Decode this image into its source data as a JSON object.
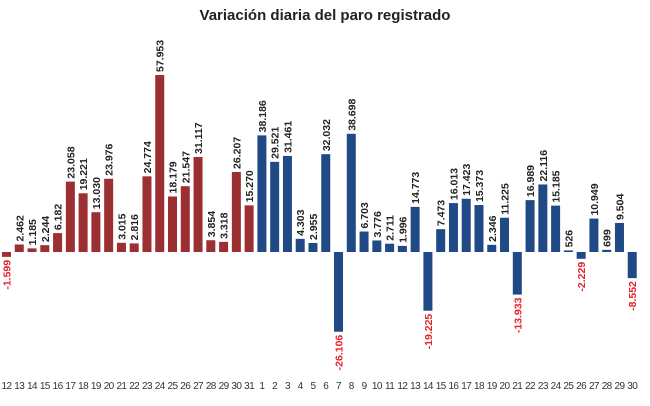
{
  "chart_data": {
    "type": "bar",
    "title": "Variación diaria del paro registrado",
    "xlabel": "",
    "ylabel": "",
    "grid": false,
    "legend": "none",
    "categories": [
      "12",
      "13",
      "14",
      "15",
      "16",
      "17",
      "18",
      "19",
      "20",
      "21",
      "22",
      "23",
      "24",
      "25",
      "26",
      "27",
      "28",
      "29",
      "30",
      "31",
      "1",
      "2",
      "3",
      "4",
      "5",
      "6",
      "7",
      "8",
      "9",
      "10",
      "11",
      "12",
      "13",
      "14",
      "15",
      "16",
      "17",
      "18",
      "19",
      "20",
      "21",
      "22",
      "23",
      "24",
      "25",
      "26",
      "27",
      "28",
      "29",
      "30"
    ],
    "values": [
      -1599,
      2462,
      1185,
      2244,
      6182,
      23058,
      19221,
      13030,
      23976,
      3015,
      2816,
      24774,
      57953,
      18179,
      21547,
      31117,
      3854,
      3318,
      26207,
      15270,
      38186,
      29521,
      31461,
      4303,
      2955,
      32032,
      -26106,
      38698,
      6703,
      3776,
      2711,
      1996,
      14773,
      -19225,
      7473,
      16013,
      17423,
      15373,
      2346,
      11225,
      -13933,
      16989,
      22116,
      15185,
      526,
      -2229,
      10949,
      699,
      9504,
      -8552
    ],
    "data_labels": [
      "-1.599",
      "2.462",
      "1.185",
      "2.244",
      "6.182",
      "23.058",
      "19.221",
      "13.030",
      "23.976",
      "3.015",
      "2.816",
      "24.774",
      "57.953",
      "18.179",
      "21.547",
      "31.117",
      "3.854",
      "3.318",
      "26.207",
      "15.270",
      "38.186",
      "29.521",
      "31.461",
      "4.303",
      "2.955",
      "32.032",
      "-26.106",
      "38.698",
      "6.703",
      "3.776",
      "2.711",
      "1.996",
      "14.773",
      "-19.225",
      "7.473",
      "16.013",
      "17.423",
      "15.373",
      "2.346",
      "11.225",
      "-13.933",
      "16.989",
      "22.116",
      "15.185",
      "526",
      "-2.229",
      "10.949",
      "699",
      "9.504",
      "-8.552"
    ],
    "groups": [
      0,
      0,
      0,
      0,
      0,
      0,
      0,
      0,
      0,
      0,
      0,
      0,
      0,
      0,
      0,
      0,
      0,
      0,
      0,
      0,
      1,
      1,
      1,
      1,
      1,
      1,
      1,
      1,
      1,
      1,
      1,
      1,
      1,
      1,
      1,
      1,
      1,
      1,
      1,
      1,
      1,
      1,
      1,
      1,
      1,
      1,
      1,
      1,
      1,
      1
    ],
    "group_colors": [
      "#9b2f32",
      "#1f4a86"
    ],
    "negative_label_color": "#e8202a",
    "ylim": [
      -30000,
      60000
    ]
  }
}
